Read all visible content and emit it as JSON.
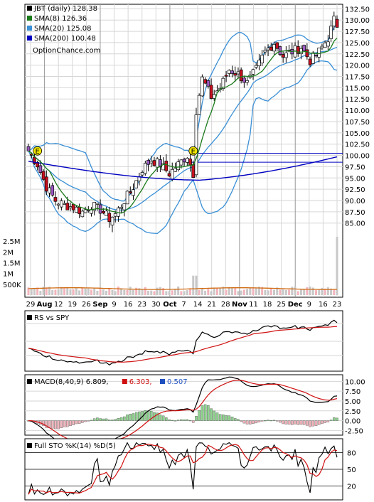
{
  "chart_data": [
    {
      "panel": "price",
      "type": "candlestick",
      "legend": [
        {
          "label": "JBT (daily) 128.38",
          "color": "#000000"
        },
        {
          "label": "SMA(8) 126.36",
          "color": "#1a7a1a"
        },
        {
          "label": "SMA(20) 125.08",
          "color": "#3a8fd6"
        },
        {
          "label": "SMA(200) 100.48",
          "color": "#0000c0"
        }
      ],
      "watermark": "OptionChance.com",
      "x_ticks": [
        "29",
        "Aug",
        "12",
        "19",
        "26",
        "Sep",
        "9",
        "16",
        "23",
        "30",
        "Oct",
        "7",
        "14",
        "21",
        "28",
        "Nov",
        "11",
        "18",
        "25",
        "Dec",
        "9",
        "16",
        "23"
      ],
      "y_ticks": [
        "132.50",
        "130.00",
        "127.50",
        "125.00",
        "122.50",
        "120.00",
        "117.50",
        "115.00",
        "112.50",
        "110.00",
        "107.50",
        "105.00",
        "102.50",
        "100.00",
        "97.50",
        "95.00",
        "92.50",
        "90.00",
        "87.50",
        "85.00"
      ],
      "ylim": [
        83.5,
        133.5
      ],
      "markers": [
        "E",
        "E"
      ],
      "close_anchors": [
        [
          0,
          101
        ],
        [
          3,
          98
        ],
        [
          6,
          93
        ],
        [
          9,
          90
        ],
        [
          12,
          89
        ],
        [
          15,
          88.5
        ],
        [
          18,
          87.5
        ],
        [
          21,
          89
        ],
        [
          24,
          88
        ],
        [
          27,
          86
        ],
        [
          29,
          87
        ],
        [
          32,
          90
        ],
        [
          35,
          93
        ],
        [
          38,
          97
        ],
        [
          41,
          99
        ],
        [
          44,
          98
        ],
        [
          47,
          96
        ],
        [
          50,
          98
        ],
        [
          53,
          100
        ],
        [
          55,
          96
        ],
        [
          56,
          110
        ],
        [
          58,
          117
        ],
        [
          61,
          113
        ],
        [
          64,
          115
        ],
        [
          67,
          119
        ],
        [
          70,
          118
        ],
        [
          73,
          116
        ],
        [
          76,
          119
        ],
        [
          79,
          123
        ],
        [
          82,
          125
        ],
        [
          85,
          122
        ],
        [
          88,
          123
        ],
        [
          91,
          124
        ],
        [
          94,
          121
        ],
        [
          97,
          123
        ],
        [
          100,
          126
        ],
        [
          102,
          130
        ],
        [
          103,
          128.38
        ]
      ],
      "hline_levels": [
        100.48,
        98.5
      ],
      "n_bars": 104,
      "volume_ticks": [
        "2.5M",
        "2M",
        "1.5M",
        "1M",
        "500K"
      ]
    },
    {
      "panel": "rs",
      "type": "line",
      "legend": [
        {
          "label": "RS vs SPY",
          "color": "#000000"
        }
      ]
    },
    {
      "panel": "macd",
      "type": "line",
      "legend": [
        {
          "label": "MACD(8,40,9) 6.809,",
          "color": "#000000"
        },
        {
          "label": "6.303,",
          "color": "#d01010"
        },
        {
          "label": "0.507",
          "color": "#2050c0"
        }
      ],
      "y_ticks": [
        "10.00",
        "7.50",
        "5.00",
        "2.50",
        "0.00",
        "-2.50"
      ],
      "ylim": [
        -3.7,
        11.7
      ]
    },
    {
      "panel": "stochastic",
      "type": "line",
      "legend": [
        {
          "label": "Full STO %K(14) %D(5)",
          "color": "#000000"
        }
      ],
      "y_ticks": [
        "80",
        "50",
        "20"
      ],
      "ylim": [
        0,
        100
      ]
    }
  ]
}
